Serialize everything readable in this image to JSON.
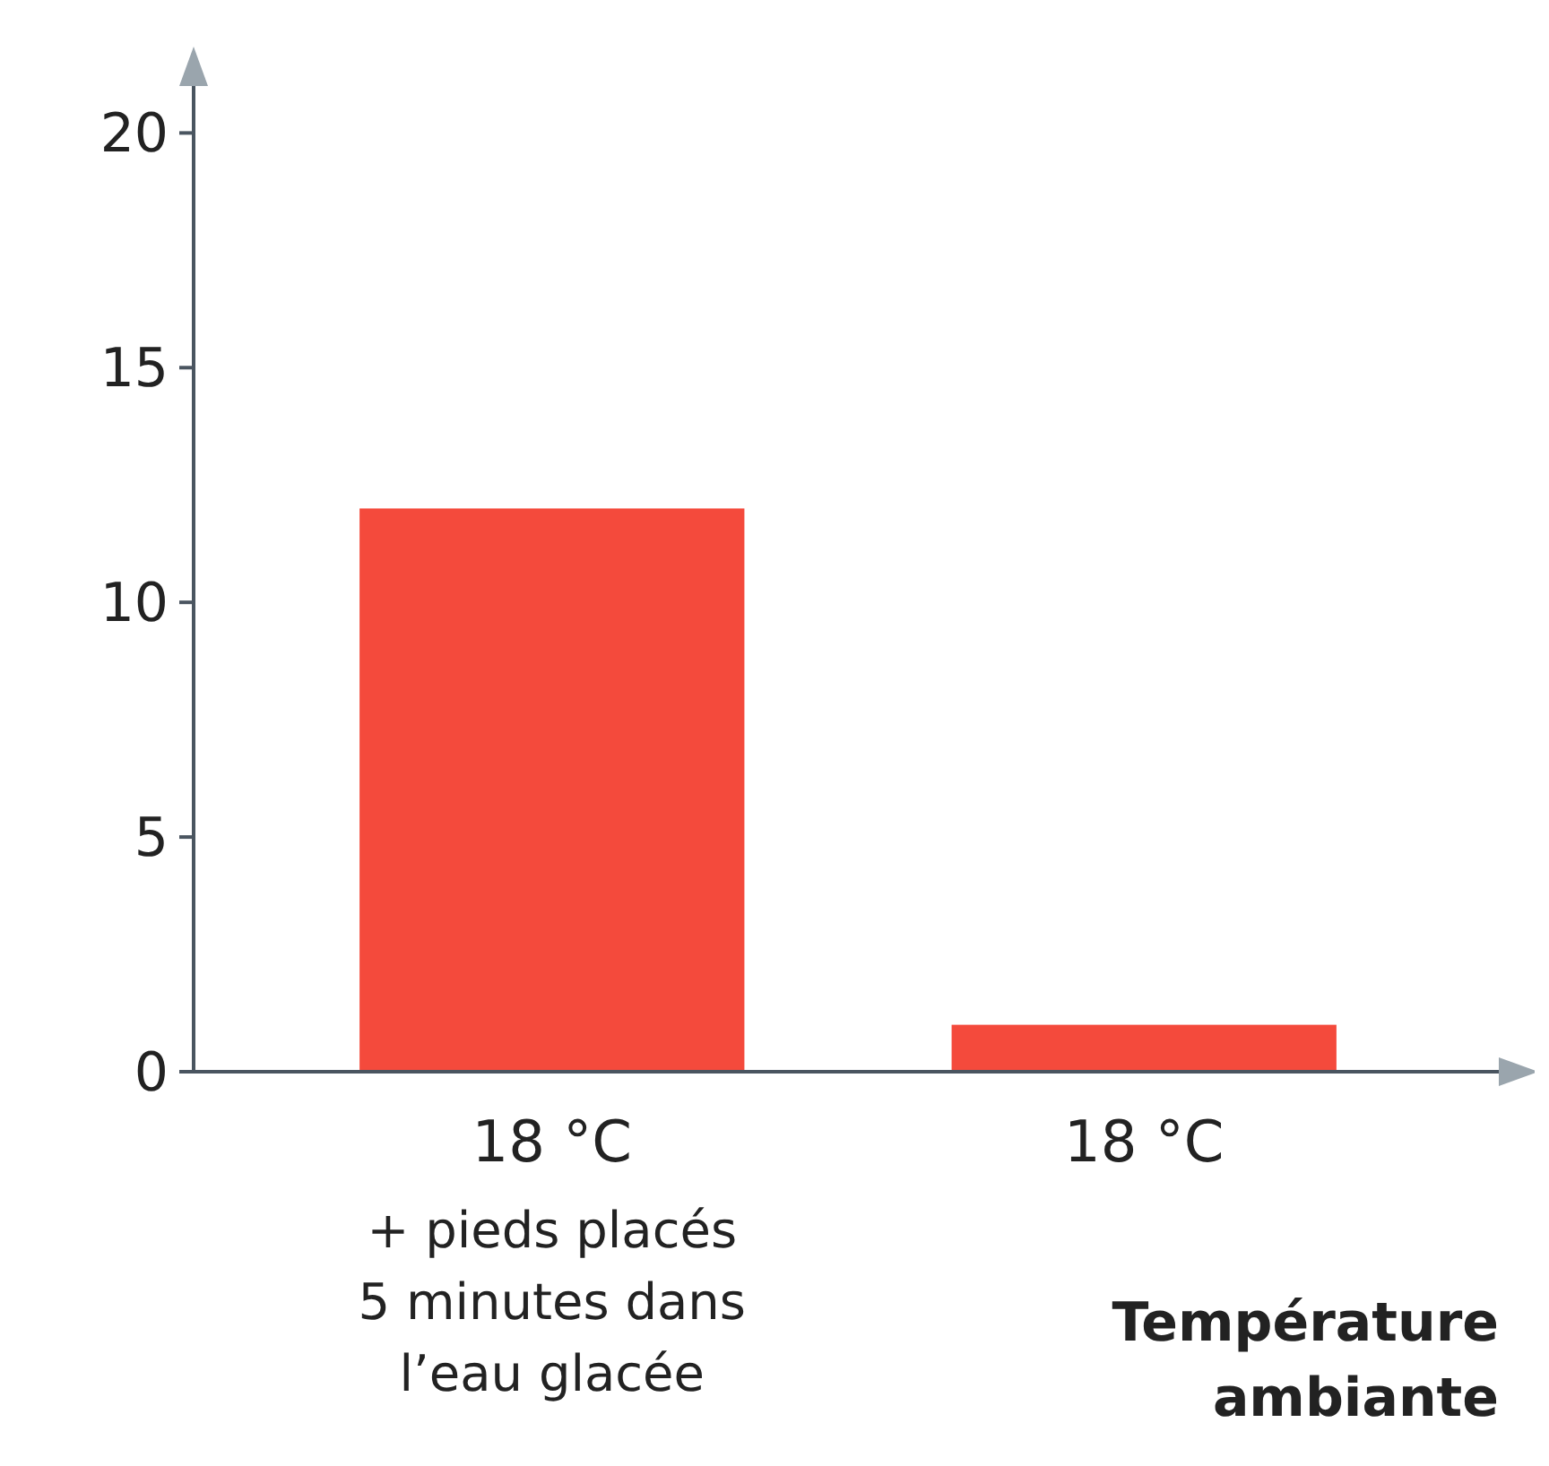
{
  "chart_data": {
    "type": "bar",
    "xlabel": "Température\nambiante",
    "categories": [
      "18 °C\n+ pieds placés\n5 minutes dans\nl’eau glacée",
      "18 °C"
    ],
    "values": [
      12,
      1
    ],
    "color": "#f44a3c",
    "ylim": [
      0,
      21
    ],
    "yticks": [
      0,
      5,
      10,
      15,
      20
    ],
    "grid": false
  }
}
